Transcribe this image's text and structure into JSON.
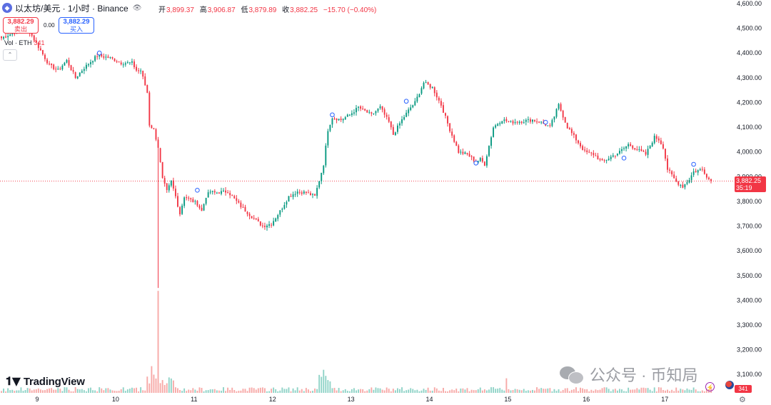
{
  "header": {
    "symbol_icon": "ethereum-icon",
    "symbol_title": "以太坊/美元 · 1小时 · Binance",
    "eye_icon": "eye-icon",
    "ohlc": {
      "open_label": "开",
      "open": "3,899.37",
      "high_label": "高",
      "high": "3,906.87",
      "low_label": "低",
      "low": "3,879.89",
      "close_label": "收",
      "close": "3,882.25",
      "change": "−15.70 (−0.40%)"
    }
  },
  "trade": {
    "sell_price": "3,882.29",
    "sell_label": "卖出",
    "buy_price": "3,882.29",
    "buy_label": "买入",
    "spread": "0.00"
  },
  "volume_legend": {
    "label": "Vol · ETH",
    "value": "341"
  },
  "price_axis": {
    "ticks": [
      "4,600.00",
      "4,500.00",
      "4,400.00",
      "4,300.00",
      "4,200.00",
      "4,100.00",
      "4,000.00",
      "3,900.00",
      "3,800.00",
      "3,700.00",
      "3,600.00",
      "3,500.00",
      "3,400.00",
      "3,300.00",
      "3,200.00",
      "3,100.00"
    ],
    "last_price": "3,882.25",
    "countdown": "35:19",
    "volume_tag": "341"
  },
  "time_axis": {
    "ticks": [
      "9",
      "10",
      "11",
      "12",
      "13",
      "14",
      "15",
      "16",
      "17"
    ]
  },
  "branding": {
    "logo": "TradingView",
    "watermark": "公众号 · 币知局"
  },
  "colors": {
    "up": "#089981",
    "down": "#f23645",
    "up_vol": "#8fd3c7",
    "down_vol": "#f7a9a7"
  },
  "chart_data": {
    "type": "candlestick",
    "ylim": [
      3100,
      4600
    ],
    "x_ticks": [
      "9",
      "10",
      "11",
      "12",
      "13",
      "14",
      "15",
      "16",
      "17"
    ],
    "anchors": [
      [
        0,
        4460
      ],
      [
        5,
        4480
      ],
      [
        12,
        4500
      ],
      [
        16,
        4440
      ],
      [
        22,
        4350
      ],
      [
        26,
        4330
      ],
      [
        30,
        4370
      ],
      [
        34,
        4300
      ],
      [
        38,
        4340
      ],
      [
        44,
        4390
      ],
      [
        50,
        4380
      ],
      [
        55,
        4360
      ],
      [
        60,
        4360
      ],
      [
        62,
        4330
      ],
      [
        64,
        4330
      ],
      [
        67,
        4240
      ],
      [
        68,
        4110
      ],
      [
        70,
        4090
      ],
      [
        72,
        4020
      ],
      [
        74,
        3890
      ],
      [
        76,
        3840
      ],
      [
        78,
        3880
      ],
      [
        80,
        3820
      ],
      [
        82,
        3750
      ],
      [
        84,
        3820
      ],
      [
        86,
        3810
      ],
      [
        88,
        3800
      ],
      [
        90,
        3790
      ],
      [
        92,
        3760
      ],
      [
        94,
        3820
      ],
      [
        96,
        3840
      ],
      [
        98,
        3835
      ],
      [
        104,
        3840
      ],
      [
        110,
        3780
      ],
      [
        116,
        3730
      ],
      [
        120,
        3700
      ],
      [
        124,
        3710
      ],
      [
        128,
        3760
      ],
      [
        132,
        3820
      ],
      [
        136,
        3840
      ],
      [
        140,
        3835
      ],
      [
        144,
        3820
      ],
      [
        148,
        3950
      ],
      [
        150,
        4090
      ],
      [
        152,
        4140
      ],
      [
        156,
        4130
      ],
      [
        160,
        4150
      ],
      [
        164,
        4180
      ],
      [
        168,
        4160
      ],
      [
        170,
        4150
      ],
      [
        174,
        4180
      ],
      [
        178,
        4120
      ],
      [
        180,
        4070
      ],
      [
        182,
        4100
      ],
      [
        184,
        4130
      ],
      [
        188,
        4180
      ],
      [
        190,
        4200
      ],
      [
        194,
        4280
      ],
      [
        198,
        4260
      ],
      [
        202,
        4190
      ],
      [
        206,
        4090
      ],
      [
        210,
        4000
      ],
      [
        214,
        3990
      ],
      [
        218,
        3960
      ],
      [
        220,
        3970
      ],
      [
        222,
        3950
      ],
      [
        226,
        4100
      ],
      [
        230,
        4130
      ],
      [
        234,
        4120
      ],
      [
        240,
        4125
      ],
      [
        244,
        4130
      ],
      [
        248,
        4120
      ],
      [
        252,
        4100
      ],
      [
        256,
        4190
      ],
      [
        260,
        4100
      ],
      [
        264,
        4050
      ],
      [
        268,
        4000
      ],
      [
        272,
        3990
      ],
      [
        276,
        3960
      ],
      [
        280,
        3980
      ],
      [
        284,
        4000
      ],
      [
        288,
        4030
      ],
      [
        292,
        4010
      ],
      [
        296,
        3990
      ],
      [
        300,
        4060
      ],
      [
        302,
        4050
      ],
      [
        304,
        4020
      ],
      [
        306,
        3930
      ],
      [
        310,
        3880
      ],
      [
        313,
        3860
      ],
      [
        316,
        3890
      ],
      [
        318,
        3920
      ],
      [
        322,
        3930
      ],
      [
        325,
        3890
      ],
      [
        326,
        3882
      ]
    ],
    "crash_low": 3450,
    "volume_spikes": {
      "72": 420,
      "69": 110,
      "70": 75,
      "148": 95,
      "149": 70,
      "232": 60
    }
  }
}
